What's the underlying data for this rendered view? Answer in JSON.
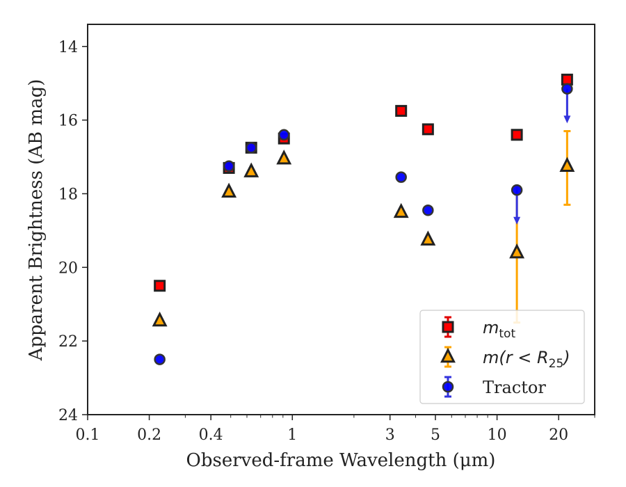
{
  "chart_data": {
    "type": "scatter",
    "xlabel": "Observed-frame Wavelength (μm)",
    "ylabel": "Apparent Brightness (AB mag)",
    "xscale": "log",
    "yscale": "linear-inverted",
    "xlim": [
      0.1,
      30
    ],
    "ylim": [
      24,
      13.4
    ],
    "x_ticks": [
      0.1,
      0.2,
      0.4,
      1,
      3,
      5,
      10,
      20
    ],
    "x_tick_labels": [
      "0.1",
      "0.2",
      "0.4",
      "1",
      "3",
      "5",
      "10",
      "20"
    ],
    "y_ticks": [
      14,
      16,
      18,
      20,
      22,
      24
    ],
    "y_tick_labels": [
      "14",
      "16",
      "18",
      "20",
      "22",
      "24"
    ],
    "grid": false,
    "legend_position": "lower-right",
    "series": [
      {
        "name": "m_tot",
        "legend_main": "m",
        "legend_sub": "tot",
        "marker": "square",
        "color": "#ff0000",
        "edge_color": "#222222",
        "errorbar_color": "#e00000",
        "points": [
          {
            "x": 0.225,
            "y": 20.5
          },
          {
            "x": 0.49,
            "y": 17.3
          },
          {
            "x": 0.63,
            "y": 16.75
          },
          {
            "x": 0.91,
            "y": 16.5
          },
          {
            "x": 3.4,
            "y": 15.75
          },
          {
            "x": 4.6,
            "y": 16.25
          },
          {
            "x": 12.5,
            "y": 16.4
          },
          {
            "x": 22,
            "y": 14.9
          }
        ]
      },
      {
        "name": "m(r < R25)",
        "legend_main": "m(r < R",
        "legend_sub": "25",
        "legend_tail": ")",
        "marker": "triangle",
        "color": "#ffa500",
        "edge_color": "#222222",
        "errorbar_color": "#ffa500",
        "points": [
          {
            "x": 0.225,
            "y": 21.45
          },
          {
            "x": 0.49,
            "y": 17.95
          },
          {
            "x": 0.63,
            "y": 17.4
          },
          {
            "x": 0.91,
            "y": 17.05
          },
          {
            "x": 3.4,
            "y": 18.5
          },
          {
            "x": 4.6,
            "y": 19.25
          },
          {
            "x": 12.5,
            "y": 19.6,
            "yerr_low": 17.8,
            "yerr_high": 21.5
          },
          {
            "x": 22,
            "y": 17.25,
            "yerr_low": 16.3,
            "yerr_high": 18.3
          }
        ]
      },
      {
        "name": "Tractor",
        "marker": "circle",
        "color": "#0000ff",
        "edge_color": "#333333",
        "errorbar_color": "#3333dd",
        "points": [
          {
            "x": 0.225,
            "y": 22.5
          },
          {
            "x": 0.49,
            "y": 17.25
          },
          {
            "x": 0.63,
            "y": 16.75
          },
          {
            "x": 0.91,
            "y": 16.4
          },
          {
            "x": 3.4,
            "y": 17.55
          },
          {
            "x": 4.6,
            "y": 18.45
          },
          {
            "x": 12.5,
            "y": 17.9,
            "upper_limit_to": 18.8
          },
          {
            "x": 22,
            "y": 15.15,
            "upper_limit_to": 16.05
          }
        ]
      }
    ]
  }
}
